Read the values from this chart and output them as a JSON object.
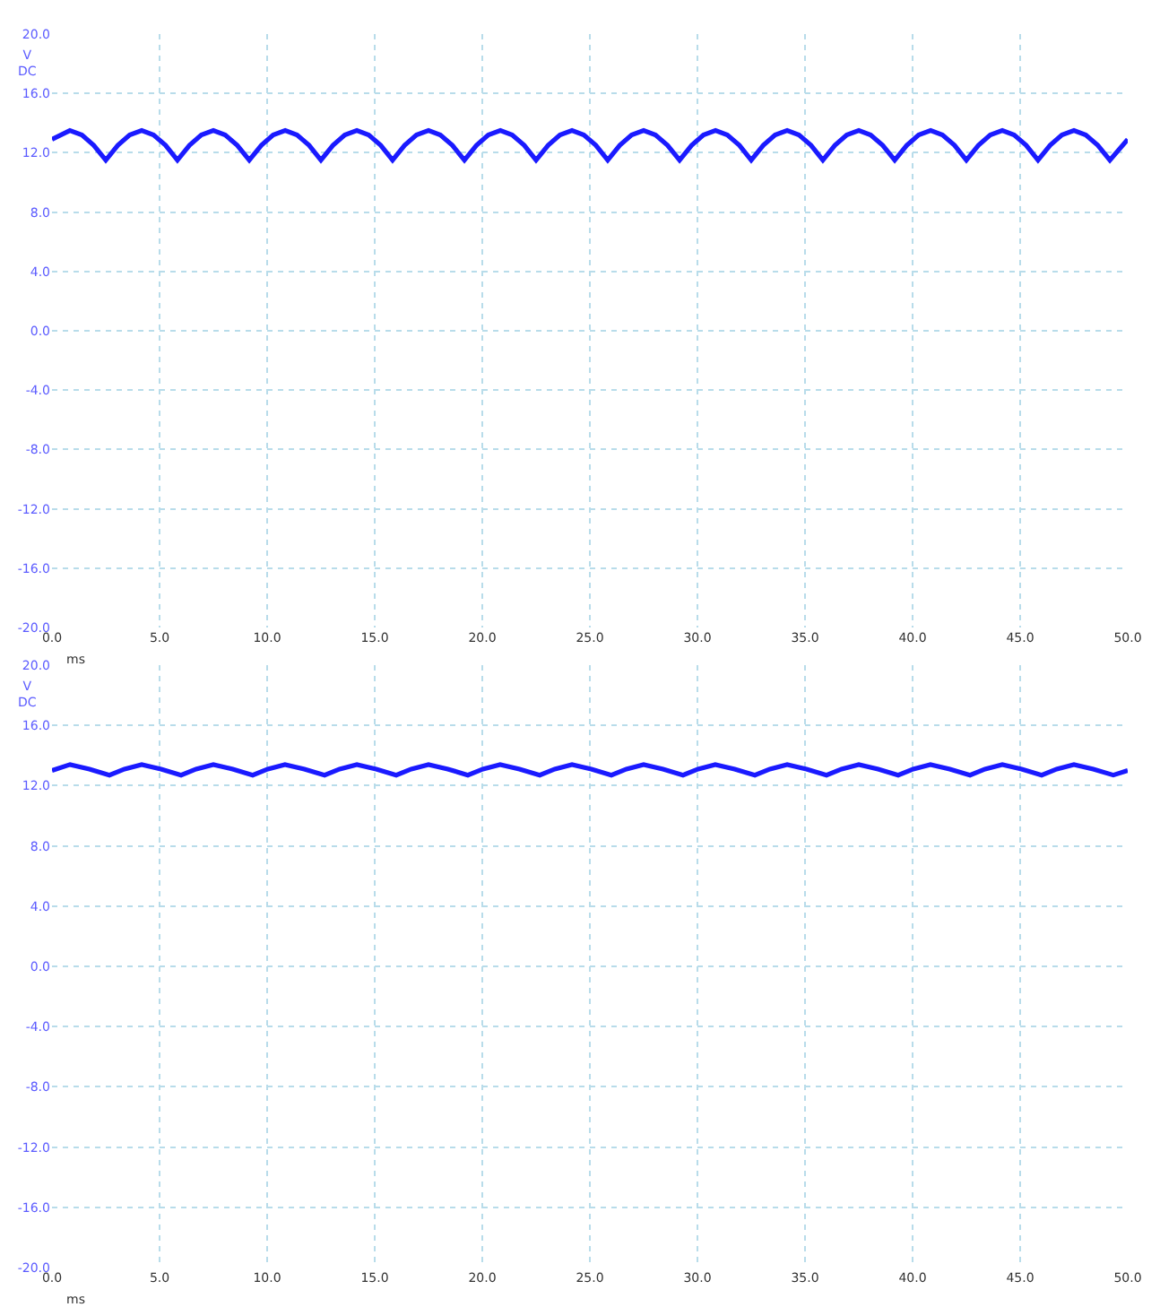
{
  "chart_data": [
    {
      "type": "line",
      "xlabel": "ms",
      "ylabel": "V\nDC",
      "grid": true,
      "xlim": [
        0,
        50
      ],
      "ylim": [
        -20,
        20
      ],
      "xticks": [
        {
          "value": 0,
          "label": "0.0"
        },
        {
          "value": 5,
          "label": "5.0"
        },
        {
          "value": 10,
          "label": "10.0"
        },
        {
          "value": 15,
          "label": "15.0"
        },
        {
          "value": 20,
          "label": "20.0"
        },
        {
          "value": 25,
          "label": "25.0"
        },
        {
          "value": 30,
          "label": "30.0"
        },
        {
          "value": 35,
          "label": "35.0"
        },
        {
          "value": 40,
          "label": "40.0"
        },
        {
          "value": 45,
          "label": "45.0"
        },
        {
          "value": 50,
          "label": "50.0"
        }
      ],
      "yticks": [
        {
          "value": -20,
          "label": "-20.0"
        },
        {
          "value": -16,
          "label": "-16.0"
        },
        {
          "value": -12,
          "label": "-12.0"
        },
        {
          "value": -8,
          "label": "-8.0"
        },
        {
          "value": -4,
          "label": "-4.0"
        },
        {
          "value": 0,
          "label": "0.0"
        },
        {
          "value": 4,
          "label": "4.0"
        },
        {
          "value": 8,
          "label": "8.0"
        },
        {
          "value": 12,
          "label": "12.0"
        },
        {
          "value": 16,
          "label": "16.0"
        },
        {
          "value": 20,
          "label": "20.0"
        }
      ],
      "x": [
        0,
        0.83,
        1.39,
        1.94,
        2.5,
        3.06,
        3.61,
        4.17,
        4.72,
        5.28,
        5.83,
        6.39,
        6.94,
        7.5,
        8.05,
        8.61,
        9.17,
        9.73,
        10.28,
        10.84,
        11.39,
        11.95,
        12.5,
        13.06,
        13.61,
        14.17,
        14.72,
        15.28,
        15.83,
        16.39,
        16.94,
        17.5,
        18.05,
        18.61,
        19.17,
        19.73,
        20.28,
        20.84,
        21.39,
        21.95,
        22.5,
        23.06,
        23.61,
        24.17,
        24.72,
        25.28,
        25.83,
        26.39,
        26.94,
        27.5,
        28.05,
        28.61,
        29.17,
        29.73,
        30.28,
        30.84,
        31.39,
        31.95,
        32.5,
        33.06,
        33.61,
        34.17,
        34.72,
        35.28,
        35.83,
        36.39,
        36.94,
        37.5,
        38.05,
        38.61,
        39.17,
        39.73,
        40.28,
        40.84,
        41.39,
        41.95,
        42.5,
        43.06,
        43.61,
        44.17,
        44.72,
        45.28,
        45.83,
        46.39,
        46.94,
        47.5,
        48.05,
        48.61,
        49.17,
        50
      ],
      "series": [
        {
          "color": "#1a1aff",
          "values": [
            12.9,
            13.5,
            13.2,
            12.5,
            11.5,
            12.5,
            13.2,
            13.5,
            13.2,
            12.5,
            11.5,
            12.5,
            13.2,
            13.5,
            13.2,
            12.5,
            11.5,
            12.5,
            13.2,
            13.5,
            13.2,
            12.5,
            11.5,
            12.5,
            13.2,
            13.5,
            13.2,
            12.5,
            11.5,
            12.5,
            13.2,
            13.5,
            13.2,
            12.5,
            11.5,
            12.5,
            13.2,
            13.5,
            13.2,
            12.5,
            11.5,
            12.5,
            13.2,
            13.5,
            13.2,
            12.5,
            11.5,
            12.5,
            13.2,
            13.5,
            13.2,
            12.5,
            11.5,
            12.5,
            13.2,
            13.5,
            13.2,
            12.5,
            11.5,
            12.5,
            13.2,
            13.5,
            13.2,
            12.5,
            11.5,
            12.5,
            13.2,
            13.5,
            13.2,
            12.5,
            11.5,
            12.5,
            13.2,
            13.5,
            13.2,
            12.5,
            11.5,
            12.5,
            13.2,
            13.5,
            13.2,
            12.5,
            11.5,
            12.5,
            13.2,
            13.5,
            13.2,
            12.5,
            11.5,
            12.9
          ]
        }
      ]
    },
    {
      "type": "line",
      "xlabel": "ms",
      "ylabel": "V\nDC",
      "grid": true,
      "xlim": [
        0,
        50
      ],
      "ylim": [
        -20,
        20
      ],
      "xticks": [
        {
          "value": 0,
          "label": "0.0"
        },
        {
          "value": 5,
          "label": "5.0"
        },
        {
          "value": 10,
          "label": "10.0"
        },
        {
          "value": 15,
          "label": "15.0"
        },
        {
          "value": 20,
          "label": "20.0"
        },
        {
          "value": 25,
          "label": "25.0"
        },
        {
          "value": 30,
          "label": "30.0"
        },
        {
          "value": 35,
          "label": "35.0"
        },
        {
          "value": 40,
          "label": "40.0"
        },
        {
          "value": 45,
          "label": "45.0"
        },
        {
          "value": 50,
          "label": "50.0"
        }
      ],
      "yticks": [
        {
          "value": -20,
          "label": "-20.0"
        },
        {
          "value": -16,
          "label": "-16.0"
        },
        {
          "value": -12,
          "label": "-12.0"
        },
        {
          "value": -8,
          "label": "-8.0"
        },
        {
          "value": -4,
          "label": "-4.0"
        },
        {
          "value": 0,
          "label": "0.0"
        },
        {
          "value": 4,
          "label": "4.0"
        },
        {
          "value": 8,
          "label": "8.0"
        },
        {
          "value": 12,
          "label": "12.0"
        },
        {
          "value": 16,
          "label": "16.0"
        },
        {
          "value": 20,
          "label": "20.0"
        }
      ],
      "x": [
        0,
        0.84,
        1.74,
        2.67,
        3.37,
        4.17,
        5.07,
        6.0,
        6.7,
        7.5,
        8.4,
        9.33,
        10.03,
        10.83,
        11.73,
        12.67,
        13.37,
        14.17,
        15.07,
        16.0,
        16.7,
        17.5,
        18.4,
        19.33,
        20.03,
        20.83,
        21.73,
        22.67,
        23.37,
        24.17,
        25.07,
        26.0,
        26.7,
        27.5,
        28.4,
        29.33,
        30.03,
        30.83,
        31.73,
        32.67,
        33.37,
        34.17,
        35.07,
        36.0,
        36.7,
        37.5,
        38.4,
        39.33,
        40.03,
        40.83,
        41.73,
        42.67,
        43.37,
        44.17,
        45.07,
        46.0,
        46.7,
        47.5,
        48.4,
        49.33,
        50
      ],
      "series": [
        {
          "color": "#1a1aff",
          "values": [
            13.0,
            13.4,
            13.1,
            12.7,
            13.1,
            13.4,
            13.1,
            12.7,
            13.1,
            13.4,
            13.1,
            12.7,
            13.1,
            13.4,
            13.1,
            12.7,
            13.1,
            13.4,
            13.1,
            12.7,
            13.1,
            13.4,
            13.1,
            12.7,
            13.1,
            13.4,
            13.1,
            12.7,
            13.1,
            13.4,
            13.1,
            12.7,
            13.1,
            13.4,
            13.1,
            12.7,
            13.1,
            13.4,
            13.1,
            12.7,
            13.1,
            13.4,
            13.1,
            12.7,
            13.1,
            13.4,
            13.1,
            12.7,
            13.1,
            13.4,
            13.1,
            12.7,
            13.1,
            13.4,
            13.1,
            12.7,
            13.1,
            13.4,
            13.1,
            12.7,
            13.0
          ]
        }
      ]
    }
  ]
}
